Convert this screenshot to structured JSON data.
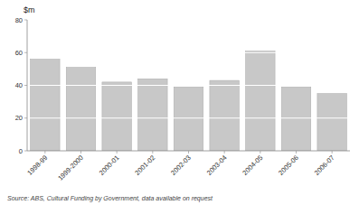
{
  "chart_data": {
    "type": "bar",
    "y_label": "$m",
    "categories": [
      "1998-99",
      "1999-2000",
      "2000-01",
      "2001-02",
      "2002-03",
      "2003-04",
      "2004-05",
      "2005-06",
      "2006-07"
    ],
    "values": [
      56,
      51,
      42,
      44,
      39,
      43,
      61,
      39,
      35
    ],
    "color": "#c8c8c8",
    "ylim": [
      0,
      80
    ],
    "yticks": [
      0,
      20,
      40,
      60,
      80
    ],
    "grid": true,
    "annotations": [
      "Source: ABS, Cultural Funding by Government, data available on request"
    ]
  }
}
